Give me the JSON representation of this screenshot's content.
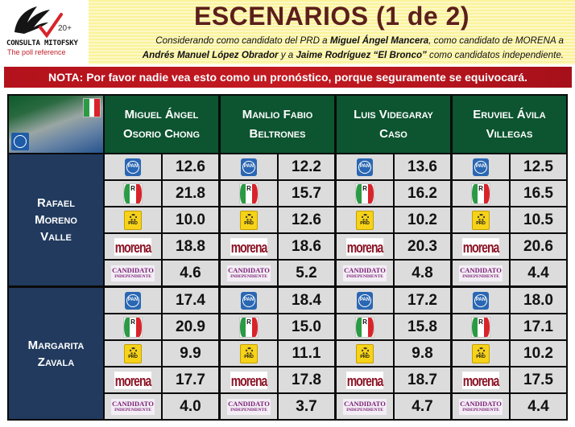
{
  "logo": {
    "brand": "CONSULTA MITOFSKY",
    "tagline": "The poll reference",
    "anniversary": "20+"
  },
  "header": {
    "title": "ESCENARIOS (1 de 2)",
    "subtitle_parts": {
      "p1": "Considerando como candidato del PRD a ",
      "b1": "Miguel Ángel Mancera",
      "p2": ", como candidato de MORENA a",
      "b2": "Andrés Manuel López Obrador",
      "p3": " y a ",
      "b3": "Jaime Rodríguez “El Bronco”",
      "p4": " como candidatos independiente."
    }
  },
  "nota": "NOTA: Por favor nadie vea esto como un pronóstico, porque seguramente se equivocará.",
  "table": {
    "corner": {
      "top_right_party": "PRI",
      "bottom_left_party": "PAN"
    },
    "columns": [
      {
        "line1": "Miguel Ángel",
        "line2": "Osorio Chong"
      },
      {
        "line1": "Manlio Fabio",
        "line2": "Beltrones"
      },
      {
        "line1": "Luis Videgaray",
        "line2": "Caso"
      },
      {
        "line1": "Eruviel Ávila",
        "line2": "Villegas"
      }
    ],
    "party_rows": [
      {
        "party": "PAN",
        "icon": "pan-logo-icon"
      },
      {
        "party": "PRI",
        "icon": "pri-logo-icon",
        "label": "R"
      },
      {
        "party": "PRD",
        "icon": "prd-logo-icon",
        "label": "PRD"
      },
      {
        "party": "MORENA",
        "icon": "morena-logo-icon",
        "label": "morena"
      },
      {
        "party": "Candidato Independiente",
        "icon": "independiente-logo-icon",
        "label1": "CANDIDATO",
        "label2": "INDEPENDIENTE"
      }
    ],
    "row_groups": [
      {
        "name_lines": [
          "Rafael",
          "Moreno",
          "Valle"
        ],
        "values": [
          [
            "12.6",
            "12.2",
            "13.6",
            "12.5"
          ],
          [
            "21.8",
            "15.7",
            "16.2",
            "16.5"
          ],
          [
            "10.0",
            "12.6",
            "10.2",
            "10.5"
          ],
          [
            "18.8",
            "18.6",
            "20.3",
            "20.6"
          ],
          [
            "4.6",
            "5.2",
            "4.8",
            "4.4"
          ]
        ]
      },
      {
        "name_lines": [
          "Margarita",
          "Zavala"
        ],
        "values": [
          [
            "17.4",
            "18.4",
            "17.2",
            "18.0"
          ],
          [
            "20.9",
            "15.0",
            "15.8",
            "17.1"
          ],
          [
            "9.9",
            "11.1",
            "9.8",
            "10.2"
          ],
          [
            "17.7",
            "17.8",
            "18.7",
            "17.5"
          ],
          [
            "4.0",
            "3.7",
            "4.7",
            "4.4"
          ]
        ]
      }
    ]
  },
  "colors": {
    "title": "#5c1f1a",
    "nota_bg": "#c41a21",
    "column_header_bg": "#0d5430",
    "row_header_bg": "#213a5e",
    "cell_bg": "#dcdcdc",
    "morena": "#8c1426",
    "independiente": "#7b1d74"
  }
}
